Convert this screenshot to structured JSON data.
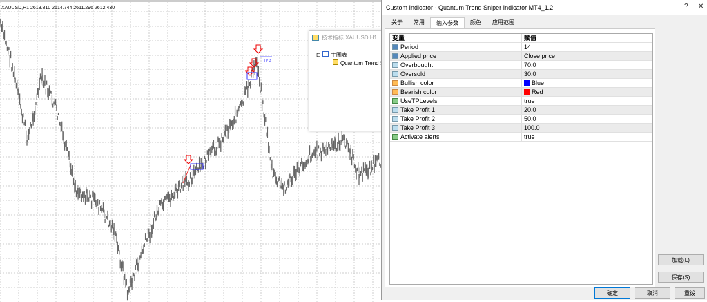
{
  "chart": {
    "symbol_line": "XAUUSD,H1  2613.810 2614.744 2611.296 2612.430",
    "tp_label": "TP 3"
  },
  "indicators_window": {
    "title": "技术指标 XAUUSD,H1",
    "root": "主图表",
    "child": "Quantum Trend Sni"
  },
  "dialog": {
    "title": "Custom Indicator - Quantum Trend Sniper Indicator MT4_1.2",
    "help": "?",
    "close": "✕",
    "tabs": [
      {
        "label": "关于"
      },
      {
        "label": "常用"
      },
      {
        "label": "输入参数",
        "active": true
      },
      {
        "label": "颜色"
      },
      {
        "label": "应用范围"
      }
    ],
    "columns": [
      "变量",
      "赋值"
    ],
    "params": [
      {
        "name": "Period",
        "value": "14",
        "type": "int"
      },
      {
        "name": "Applied price",
        "value": "Close price",
        "type": "int"
      },
      {
        "name": "Overbought",
        "value": "70.0",
        "type": "dbl"
      },
      {
        "name": "Oversold",
        "value": "30.0",
        "type": "dbl"
      },
      {
        "name": "Bullish color",
        "value": "Blue",
        "type": "col",
        "swatch": "#0000ff"
      },
      {
        "name": "Bearish color",
        "value": "Red",
        "type": "col",
        "swatch": "#ff0000"
      },
      {
        "name": "UseTPLevels",
        "value": "true",
        "type": "bool"
      },
      {
        "name": "Take Profit 1",
        "value": "20.0",
        "type": "dbl"
      },
      {
        "name": "Take Profit 2",
        "value": "50.0",
        "type": "dbl"
      },
      {
        "name": "Take Profit 3",
        "value": "100.0",
        "type": "dbl"
      },
      {
        "name": "Activate alerts",
        "value": "true",
        "type": "bool"
      }
    ],
    "buttons": {
      "load": "加载(L)",
      "save": "保存(S)",
      "ok": "确定",
      "cancel": "取消",
      "reset": "重设"
    }
  }
}
